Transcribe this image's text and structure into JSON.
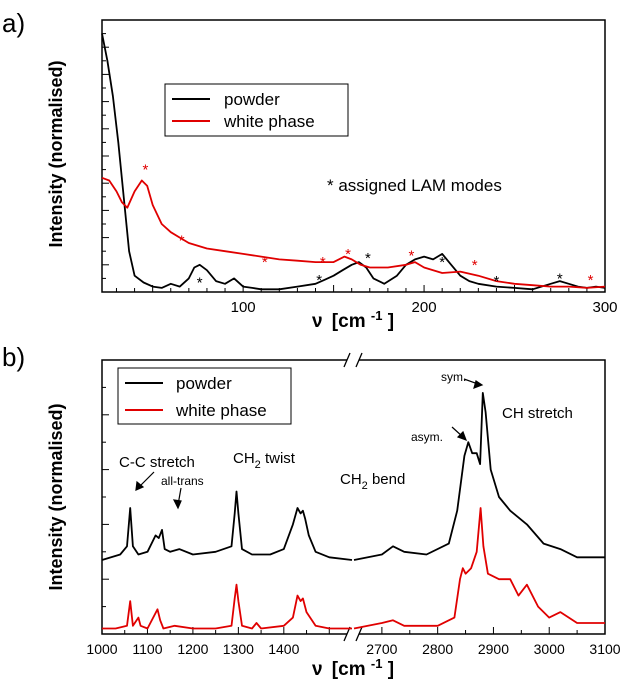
{
  "chart_data": [
    {
      "panel_label": "a)",
      "type": "line",
      "xlabel_prefix": "ν",
      "xlabel_unit": "[cm",
      "xlabel_exp": "-1",
      "xlabel_close": "]",
      "ylabel": "Intensity (normalised)",
      "xlim": [
        22,
        300
      ],
      "ylim": [
        0,
        1
      ],
      "x_ticks": [
        100,
        200,
        300
      ],
      "x_tick_labels": [
        "100",
        "200",
        "300"
      ],
      "legend": {
        "placement": "top-left",
        "entries": [
          "powder",
          "white phase"
        ]
      },
      "annotation": "* assigned LAM modes",
      "series": [
        {
          "name": "powder",
          "color": "#000000",
          "x": [
            22,
            25,
            28,
            31,
            34,
            37,
            40,
            45,
            50,
            55,
            60,
            65,
            70,
            73,
            76,
            80,
            85,
            90,
            95,
            100,
            105,
            110,
            120,
            130,
            140,
            145,
            150,
            155,
            160,
            164,
            168,
            172,
            178,
            185,
            190,
            195,
            200,
            205,
            210,
            215,
            220,
            225,
            230,
            240,
            250,
            260,
            270,
            275,
            280,
            285,
            290,
            295,
            300
          ],
          "y": [
            0.95,
            0.85,
            0.72,
            0.55,
            0.35,
            0.15,
            0.06,
            0.035,
            0.02,
            0.015,
            0.03,
            0.02,
            0.05,
            0.09,
            0.1,
            0.08,
            0.04,
            0.03,
            0.05,
            0.02,
            0.015,
            0.01,
            0.01,
            0.02,
            0.03,
            0.045,
            0.06,
            0.08,
            0.1,
            0.11,
            0.09,
            0.05,
            0.03,
            0.06,
            0.1,
            0.12,
            0.13,
            0.12,
            0.14,
            0.1,
            0.06,
            0.04,
            0.03,
            0.02,
            0.015,
            0.01,
            0.03,
            0.04,
            0.03,
            0.02,
            0.015,
            0.02,
            0.015
          ]
        },
        {
          "name": "white phase",
          "color": "#e00000",
          "x": [
            22,
            26,
            30,
            33,
            36,
            40,
            44,
            47,
            50,
            55,
            60,
            65,
            70,
            80,
            90,
            100,
            110,
            120,
            130,
            140,
            150,
            156,
            160,
            165,
            170,
            180,
            190,
            195,
            200,
            210,
            220,
            230,
            240,
            250,
            260,
            270,
            280,
            290,
            300
          ],
          "y": [
            0.42,
            0.41,
            0.37,
            0.33,
            0.31,
            0.37,
            0.41,
            0.39,
            0.32,
            0.25,
            0.22,
            0.2,
            0.18,
            0.16,
            0.15,
            0.14,
            0.13,
            0.12,
            0.115,
            0.11,
            0.11,
            0.13,
            0.12,
            0.1,
            0.09,
            0.09,
            0.1,
            0.11,
            0.09,
            0.07,
            0.075,
            0.06,
            0.04,
            0.03,
            0.025,
            0.02,
            0.02,
            0.015,
            0.02
          ]
        }
      ],
      "markers": [
        {
          "x": 46,
          "y": 0.45,
          "color": "#e00000"
        },
        {
          "x": 66,
          "y": 0.19,
          "color": "#e00000"
        },
        {
          "x": 112,
          "y": 0.11,
          "color": "#e00000"
        },
        {
          "x": 144,
          "y": 0.11,
          "color": "#e00000"
        },
        {
          "x": 158,
          "y": 0.14,
          "color": "#e00000"
        },
        {
          "x": 193,
          "y": 0.135,
          "color": "#e00000"
        },
        {
          "x": 228,
          "y": 0.1,
          "color": "#e00000"
        },
        {
          "x": 292,
          "y": 0.045,
          "color": "#e00000"
        },
        {
          "x": 76,
          "y": 0.035,
          "color": "#000000"
        },
        {
          "x": 142,
          "y": 0.045,
          "color": "#000000"
        },
        {
          "x": 169,
          "y": 0.125,
          "color": "#000000"
        },
        {
          "x": 210,
          "y": 0.11,
          "color": "#000000"
        },
        {
          "x": 240,
          "y": 0.04,
          "color": "#000000"
        },
        {
          "x": 275,
          "y": 0.05,
          "color": "#000000"
        }
      ],
      "marker_symbol": "*"
    },
    {
      "panel_label": "b)",
      "type": "line",
      "xlabel_prefix": "ν",
      "xlabel_unit": "[cm",
      "xlabel_exp": "-1",
      "xlabel_close": "]",
      "ylabel": "Intensity (normalised)",
      "broken_axis": true,
      "x_segments": [
        [
          1000,
          1550
        ],
        [
          2650,
          3100
        ]
      ],
      "ylim": [
        0,
        1
      ],
      "x_ticks": [
        1000,
        1100,
        1200,
        1300,
        1400,
        2700,
        2800,
        2900,
        3000,
        3100
      ],
      "x_tick_labels": [
        "1000",
        "1100",
        "1200",
        "1300",
        "1400",
        "2700",
        "2800",
        "2900",
        "3000",
        "3100"
      ],
      "legend": {
        "placement": "top-left",
        "entries": [
          "powder",
          "white phase"
        ]
      },
      "annotations": [
        {
          "text": "C-C stretch"
        },
        {
          "text": "all-trans"
        },
        {
          "text": "CH",
          "sub": "2",
          "rest": " twist"
        },
        {
          "text": "CH",
          "sub": "2",
          "rest": " bend"
        },
        {
          "text": "asym."
        },
        {
          "text": "sym."
        },
        {
          "text": "CH stretch"
        }
      ],
      "series": [
        {
          "name": "powder",
          "color": "#000000",
          "x": [
            1000,
            1020,
            1040,
            1055,
            1062,
            1068,
            1080,
            1100,
            1118,
            1125,
            1132,
            1138,
            1150,
            1170,
            1200,
            1250,
            1285,
            1292,
            1296,
            1300,
            1308,
            1330,
            1370,
            1400,
            1420,
            1430,
            1437,
            1442,
            1447,
            1455,
            1470,
            1500,
            1550,
            2650,
            2700,
            2720,
            2740,
            2780,
            2820,
            2835,
            2848,
            2855,
            2862,
            2870,
            2876,
            2881,
            2886,
            2895,
            2910,
            2930,
            2960,
            2990,
            3020,
            3050,
            3100
          ],
          "y": [
            0.27,
            0.28,
            0.29,
            0.32,
            0.46,
            0.32,
            0.29,
            0.3,
            0.36,
            0.35,
            0.38,
            0.31,
            0.3,
            0.31,
            0.29,
            0.3,
            0.32,
            0.44,
            0.52,
            0.44,
            0.31,
            0.29,
            0.29,
            0.31,
            0.4,
            0.46,
            0.44,
            0.45,
            0.42,
            0.36,
            0.3,
            0.28,
            0.27,
            0.27,
            0.29,
            0.32,
            0.3,
            0.29,
            0.33,
            0.45,
            0.65,
            0.7,
            0.66,
            0.66,
            0.62,
            0.88,
            0.81,
            0.6,
            0.5,
            0.45,
            0.4,
            0.33,
            0.31,
            0.28,
            0.28
          ]
        },
        {
          "name": "white phase",
          "color": "#e00000",
          "x": [
            1000,
            1030,
            1055,
            1062,
            1068,
            1080,
            1085,
            1100,
            1122,
            1128,
            1135,
            1160,
            1200,
            1250,
            1285,
            1292,
            1296,
            1300,
            1308,
            1330,
            1340,
            1350,
            1400,
            1420,
            1430,
            1437,
            1442,
            1450,
            1470,
            1500,
            1550,
            2650,
            2700,
            2720,
            2740,
            2800,
            2830,
            2840,
            2845,
            2850,
            2860,
            2870,
            2877,
            2882,
            2890,
            2910,
            2930,
            2945,
            2960,
            2980,
            3000,
            3020,
            3050,
            3100
          ],
          "y": [
            0.02,
            0.02,
            0.03,
            0.12,
            0.03,
            0.06,
            0.03,
            0.02,
            0.09,
            0.05,
            0.02,
            0.03,
            0.02,
            0.02,
            0.03,
            0.13,
            0.18,
            0.12,
            0.03,
            0.02,
            0.04,
            0.02,
            0.03,
            0.06,
            0.14,
            0.12,
            0.13,
            0.08,
            0.03,
            0.02,
            0.02,
            0.02,
            0.04,
            0.05,
            0.03,
            0.03,
            0.06,
            0.2,
            0.24,
            0.22,
            0.24,
            0.3,
            0.46,
            0.32,
            0.22,
            0.2,
            0.2,
            0.14,
            0.18,
            0.1,
            0.06,
            0.08,
            0.04,
            0.04
          ]
        }
      ]
    }
  ]
}
